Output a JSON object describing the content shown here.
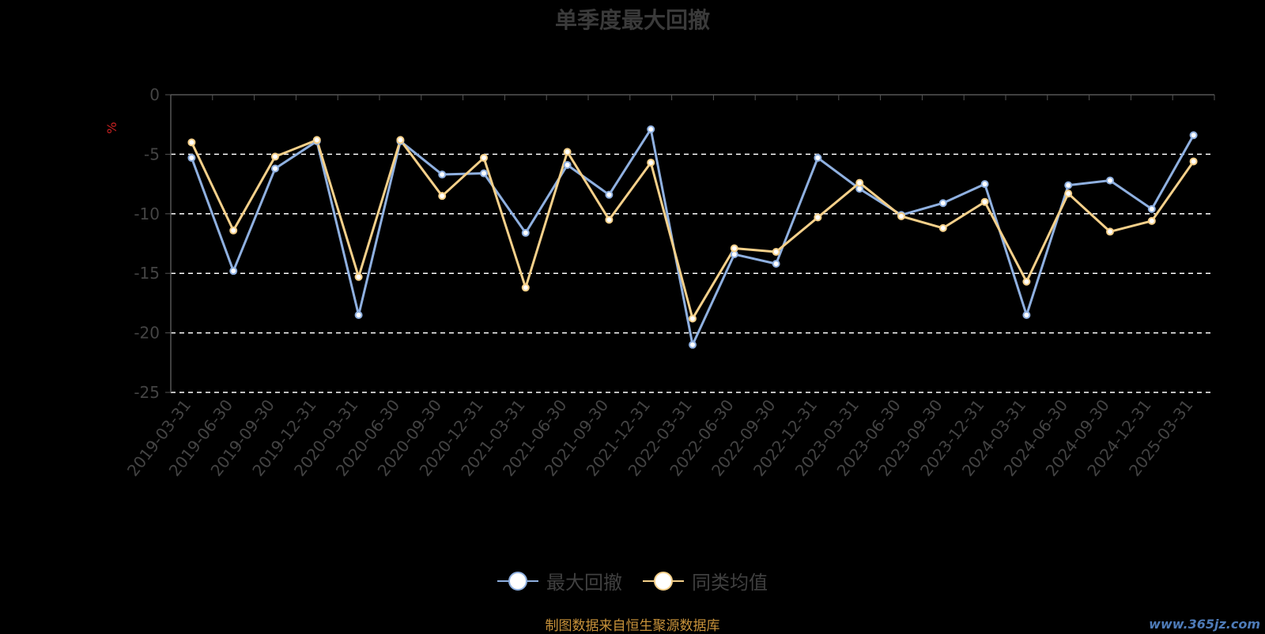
{
  "chart_data": {
    "type": "line",
    "title": "单季度最大回撤",
    "ylabel": "%",
    "ylim": [
      -25,
      0
    ],
    "yticks": [
      0,
      -5,
      -10,
      -15,
      -20,
      -25
    ],
    "grid": "dashed horizontal",
    "legend_position": "bottom",
    "categories": [
      "2019-03-31",
      "2019-06-30",
      "2019-09-30",
      "2019-12-31",
      "2020-03-31",
      "2020-06-30",
      "2020-09-30",
      "2020-12-31",
      "2021-03-31",
      "2021-06-30",
      "2021-09-30",
      "2021-12-31",
      "2022-03-31",
      "2022-06-30",
      "2022-09-30",
      "2022-12-31",
      "2023-03-31",
      "2023-06-30",
      "2023-09-30",
      "2023-12-31",
      "2024-03-31",
      "2024-06-30",
      "2024-09-30",
      "2024-12-31",
      "2025-03-31"
    ],
    "series": [
      {
        "name": "最大回撤",
        "color": "#8fb0e0",
        "values": [
          -5.3,
          -14.8,
          -6.2,
          -3.9,
          -18.5,
          -3.9,
          -6.7,
          -6.6,
          -11.6,
          -5.9,
          -8.4,
          -2.9,
          -21.0,
          -13.4,
          -14.2,
          -5.3,
          -7.9,
          -10.1,
          -9.1,
          -7.5,
          -18.5,
          -7.6,
          -7.2,
          -9.6,
          -3.4
        ]
      },
      {
        "name": "同类均值",
        "color": "#f5d08a",
        "values": [
          -4.0,
          -11.4,
          -5.2,
          -3.8,
          -15.3,
          -3.8,
          -8.5,
          -5.3,
          -16.2,
          -4.8,
          -10.5,
          -5.7,
          -18.8,
          -12.9,
          -13.2,
          -10.3,
          -7.4,
          -10.2,
          -11.2,
          -9.0,
          -15.7,
          -8.3,
          -11.5,
          -10.6,
          -5.6
        ]
      }
    ]
  },
  "footer": {
    "source": "制图数据来自恒生聚源数据库",
    "watermark": "www.365jz.com"
  }
}
